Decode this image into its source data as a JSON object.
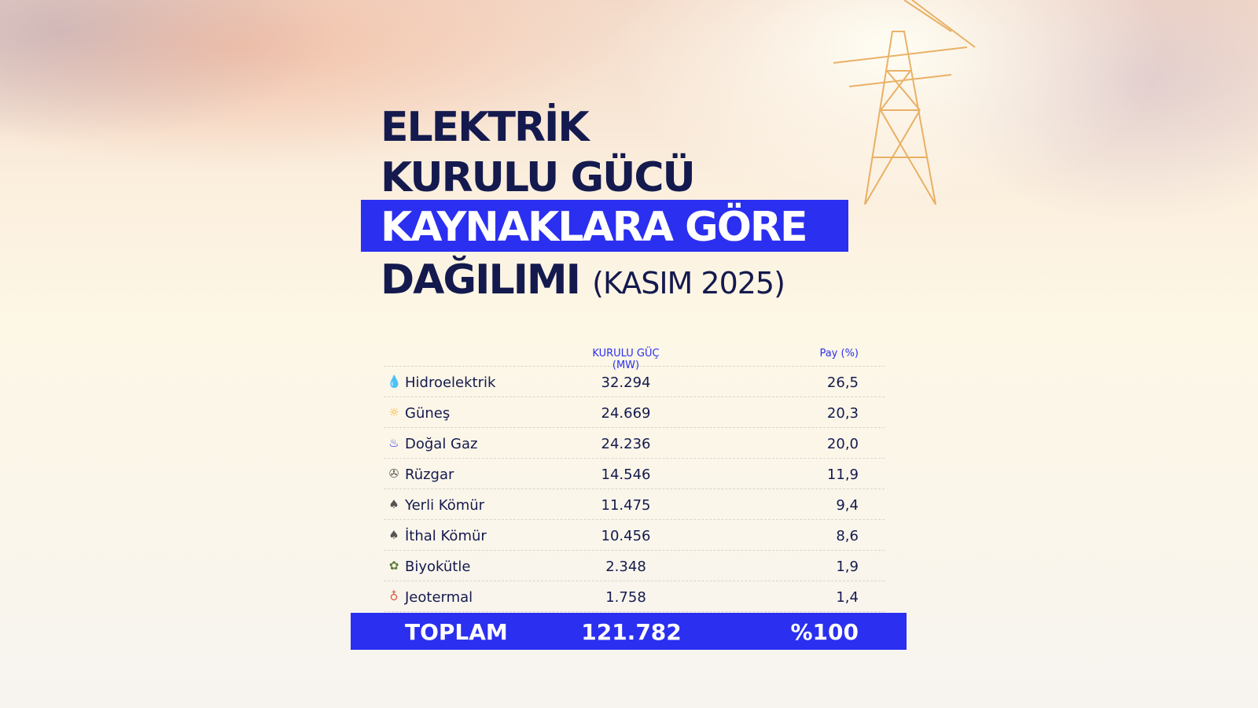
{
  "title": {
    "line1": "ELEKTRİK",
    "line2": "KURULU GÜCÜ",
    "line3": "KAYNAKLARA GÖRE",
    "line4": "DAĞILIMI",
    "period": "(KASIM 2025)"
  },
  "table": {
    "headers": {
      "capacity": "KURULU GÜÇ (MW)",
      "share": "Pay (%)"
    },
    "rows": [
      {
        "icon": "water-drop-bolt-icon",
        "icon_color": "#3bb3d6",
        "name": "Hidroelektrik",
        "mw": "32.294",
        "share": "26,5"
      },
      {
        "icon": "sun-icon",
        "icon_color": "#f2b134",
        "name": "Güneş",
        "mw": "24.669",
        "share": "20,3"
      },
      {
        "icon": "flame-icon",
        "icon_color": "#2b2ff0",
        "name": "Doğal Gaz",
        "mw": "24.236",
        "share": "20,0"
      },
      {
        "icon": "wind-turbine-icon",
        "icon_color": "#555555",
        "name": "Rüzgar",
        "mw": "14.546",
        "share": "11,9"
      },
      {
        "icon": "coal-icon",
        "icon_color": "#555555",
        "name": "Yerli Kömür",
        "mw": "11.475",
        "share": "9,4"
      },
      {
        "icon": "coal-icon",
        "icon_color": "#555555",
        "name": "İthal Kömür",
        "mw": "10.456",
        "share": "8,6"
      },
      {
        "icon": "plant-bulb-icon",
        "icon_color": "#5f7f3a",
        "name": "Biyokütle",
        "mw": "2.348",
        "share": "1,9"
      },
      {
        "icon": "geothermal-icon",
        "icon_color": "#e0583a",
        "name": "Jeotermal",
        "mw": "1.758",
        "share": "1,4"
      }
    ],
    "total": {
      "label": "TOPLAM",
      "mw": "121.782",
      "share": "%100"
    }
  },
  "colors": {
    "accent": "#2b2ff0",
    "text": "#141a4e"
  }
}
